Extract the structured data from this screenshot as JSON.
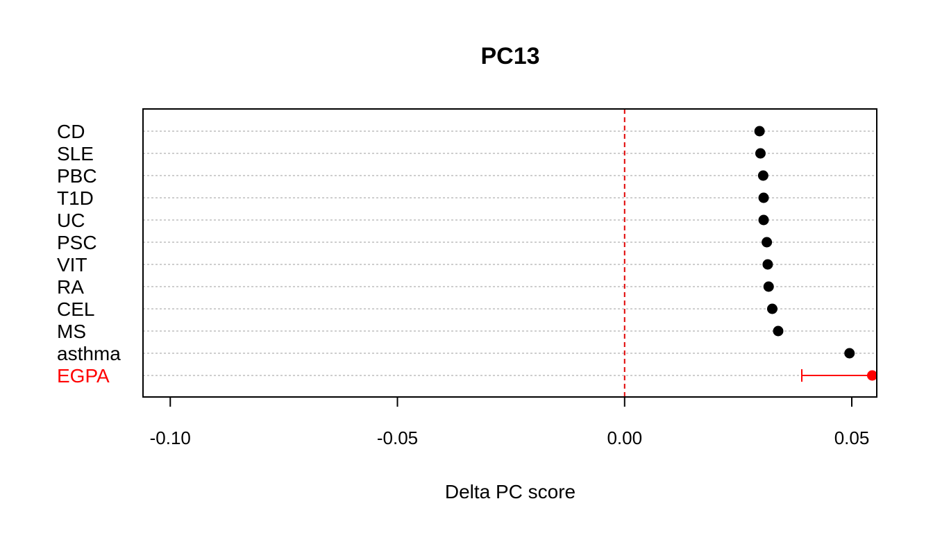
{
  "chart_data": {
    "type": "scatter",
    "title": "PC13",
    "xlabel": "Delta PC score",
    "ylabel": "",
    "xlim": [
      -0.106,
      0.0555
    ],
    "x_ticks": [
      -0.1,
      -0.05,
      0.0,
      0.05
    ],
    "x_tick_labels": [
      "-0.10",
      "-0.05",
      "0.00",
      "0.05"
    ],
    "reference_line": {
      "x": 0.0,
      "style": "dashed",
      "color": "#e00000"
    },
    "grid": "horizontal dotted",
    "categories": [
      "CD",
      "SLE",
      "PBC",
      "T1D",
      "UC",
      "PSC",
      "VIT",
      "RA",
      "CEL",
      "MS",
      "asthma",
      "EGPA"
    ],
    "values": [
      0.0297,
      0.0299,
      0.0305,
      0.0306,
      0.0306,
      0.0313,
      0.0315,
      0.0317,
      0.0325,
      0.0338,
      0.0495,
      0.0545
    ],
    "highlight": {
      "category": "EGPA",
      "color": "#ff0000",
      "interval": [
        0.039,
        0.0545
      ]
    },
    "point_color": "#000000",
    "grid_color": "#bebebe"
  }
}
